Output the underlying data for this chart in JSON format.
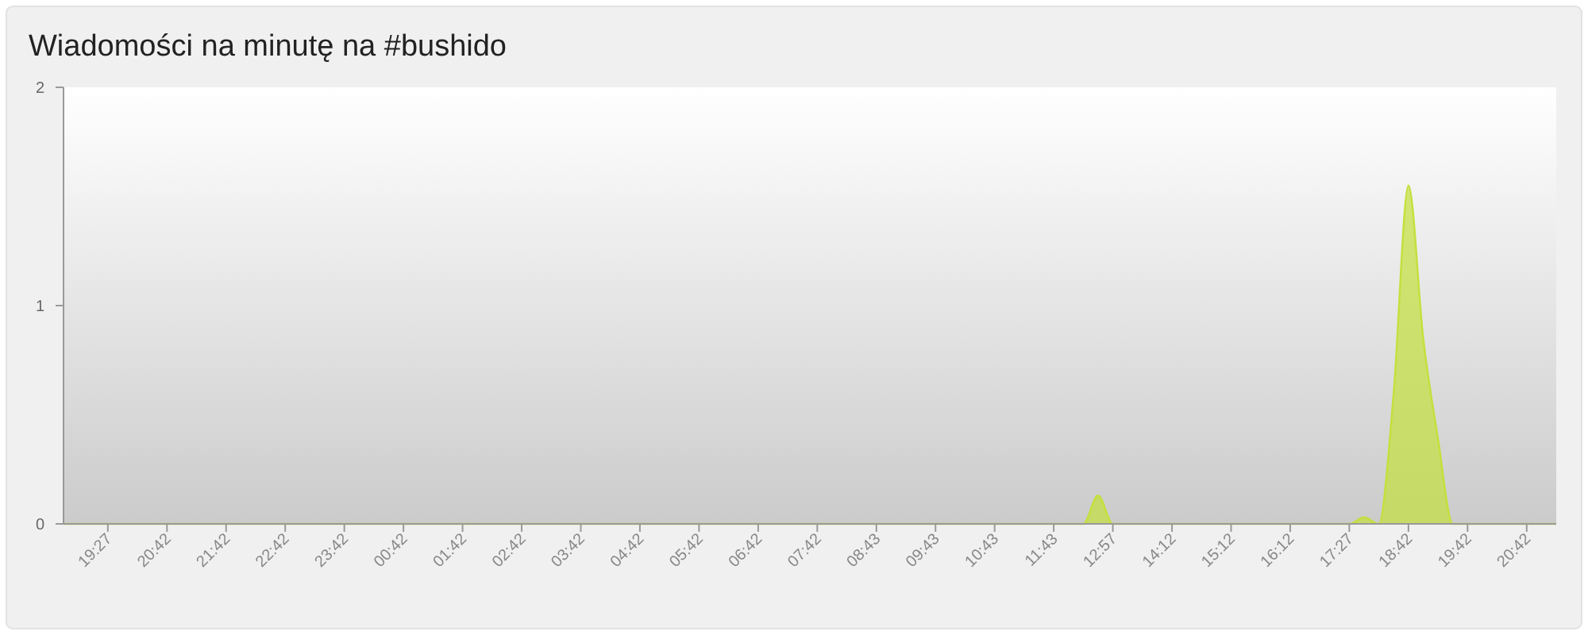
{
  "chart_data": {
    "type": "area",
    "title": "Wiadomości na minutę na #bushido",
    "categories": [
      null,
      null,
      null,
      "19:27",
      null,
      null,
      null,
      "20:42",
      null,
      null,
      null,
      "21:42",
      null,
      null,
      null,
      "22:42",
      null,
      null,
      null,
      "23:42",
      null,
      null,
      null,
      "00:42",
      null,
      null,
      null,
      "01:42",
      null,
      null,
      null,
      "02:42",
      null,
      null,
      null,
      "03:42",
      null,
      null,
      null,
      "04:42",
      null,
      null,
      null,
      "05:42",
      null,
      null,
      null,
      "06:42",
      null,
      null,
      null,
      "07:42",
      null,
      null,
      null,
      "08:43",
      null,
      null,
      null,
      "09:43",
      null,
      null,
      null,
      "10:43",
      null,
      null,
      null,
      "11:43",
      null,
      null,
      null,
      "12:57",
      null,
      null,
      null,
      "14:12",
      null,
      null,
      null,
      "15:12",
      null,
      null,
      null,
      "16:12",
      null,
      null,
      null,
      "17:27",
      null,
      null,
      null,
      "18:42",
      null,
      null,
      null,
      "19:42",
      null,
      null,
      null,
      "20:42",
      null,
      null
    ],
    "series": [
      {
        "color": "#c3e03c",
        "values": [
          0,
          0,
          0,
          0,
          0,
          0,
          0,
          0,
          0,
          0,
          0,
          0,
          0,
          0,
          0,
          0,
          0,
          0,
          0,
          0,
          0,
          0,
          0,
          0,
          0,
          0,
          0,
          0,
          0,
          0,
          0,
          0,
          0,
          0,
          0,
          0,
          0,
          0,
          0,
          0,
          0,
          0,
          0,
          0,
          0,
          0,
          0,
          0,
          0,
          0,
          0,
          0,
          0,
          0,
          0,
          0,
          0,
          0,
          0,
          0,
          0,
          0,
          0,
          0,
          0,
          0,
          0,
          0,
          0,
          0,
          0.13,
          0,
          0,
          0,
          0,
          0,
          0,
          0,
          0,
          0,
          0,
          0,
          0,
          0,
          0,
          0,
          0,
          0,
          0.03,
          0,
          0.6,
          1.55,
          0.85,
          0.39,
          0,
          0,
          0,
          0,
          0,
          0,
          0,
          0
        ]
      }
    ],
    "ylim": [
      0,
      2
    ],
    "yticks": [
      0,
      1,
      2
    ],
    "grid": false
  }
}
